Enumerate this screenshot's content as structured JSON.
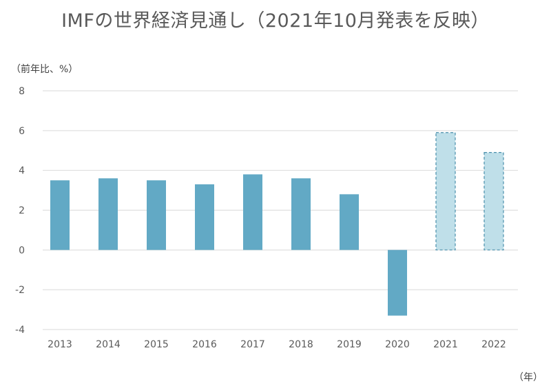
{
  "title": "IMFの世界経済見通し（2021年10月発表を反映）",
  "chart_data": {
    "type": "bar",
    "title": "IMFの世界経済見通し（2021年10月発表を反映）",
    "ylabel": "（前年比、%）",
    "xlabel": "（年）",
    "categories": [
      "2013",
      "2014",
      "2015",
      "2016",
      "2017",
      "2018",
      "2019",
      "2020",
      "2021",
      "2022"
    ],
    "values": [
      3.5,
      3.6,
      3.5,
      3.3,
      3.8,
      3.6,
      2.8,
      -3.3,
      5.9,
      4.9
    ],
    "projected": [
      false,
      false,
      false,
      false,
      false,
      false,
      false,
      false,
      true,
      true
    ],
    "ylim": [
      -4,
      8
    ],
    "yticks": [
      "8",
      "6",
      "4",
      "2",
      "0",
      "-2",
      "-4"
    ],
    "grid": true,
    "colors": {
      "actual": "#62a9c5",
      "projected_fill": "#bfdfe9",
      "projected_border": "#4a8fab",
      "grid": "#d9d9d9"
    }
  }
}
